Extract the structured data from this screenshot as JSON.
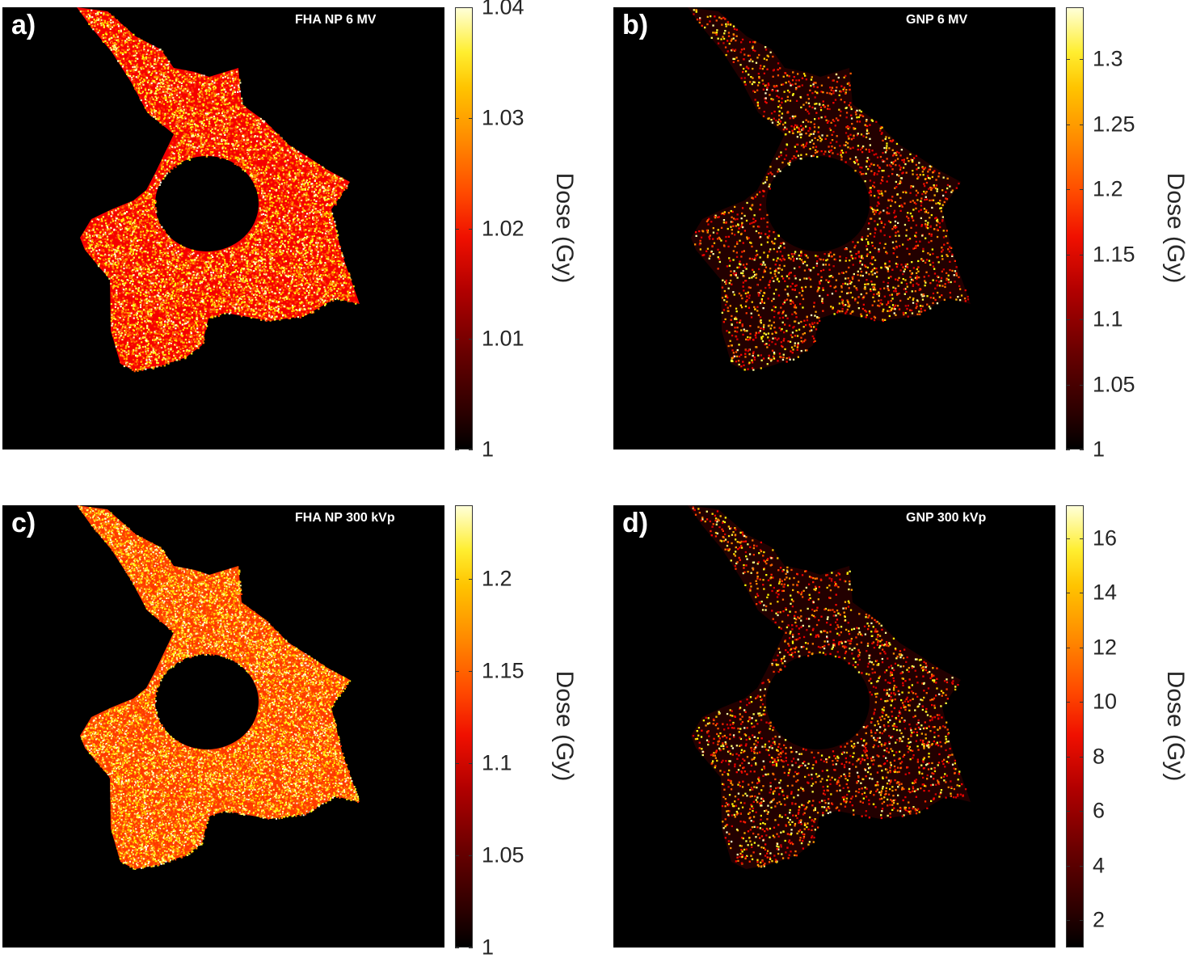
{
  "chart_data": [
    {
      "type": "heatmap",
      "panel": "a)",
      "title": "FHA NP 6 MV",
      "colorbar_label": "Dose (Gy)",
      "colormap": "hot",
      "clim": [
        1,
        1.04
      ],
      "colorbar_ticks": [
        "1",
        "1.01",
        "1.02",
        "1.03",
        "1.04"
      ],
      "tick_values": [
        1,
        1.01,
        1.02,
        1.03,
        1.04
      ],
      "dose_min": 1,
      "dose_max": 1.04,
      "typical_dose_in_cytoplasm": 1.018,
      "dose_in_nucleus": 1,
      "dose_outside_cell": 1,
      "texture": "dense"
    },
    {
      "type": "heatmap",
      "panel": "b)",
      "title": "GNP 6 MV",
      "colorbar_label": "Dose (Gy)",
      "colormap": "hot",
      "clim": [
        1,
        1.34
      ],
      "colorbar_ticks": [
        "1",
        "1.05",
        "1.1",
        "1.15",
        "1.2",
        "1.25",
        "1.3"
      ],
      "tick_values": [
        1,
        1.05,
        1.1,
        1.15,
        1.2,
        1.25,
        1.3
      ],
      "dose_min": 1,
      "dose_max": 1.34,
      "typical_dose_in_cytoplasm": 1.12,
      "dose_in_nucleus": 1,
      "dose_outside_cell": 1,
      "texture": "sparse"
    },
    {
      "type": "heatmap",
      "panel": "c)",
      "title": "FHA NP 300 kVp",
      "colorbar_label": "Dose (Gy)",
      "colormap": "hot",
      "clim": [
        1,
        1.24
      ],
      "colorbar_ticks": [
        "1",
        "1.05",
        "1.1",
        "1.15",
        "1.2"
      ],
      "tick_values": [
        1,
        1.05,
        1.1,
        1.15,
        1.2
      ],
      "dose_min": 1,
      "dose_max": 1.24,
      "typical_dose_in_cytoplasm": 1.11,
      "dose_in_nucleus": 1,
      "dose_outside_cell": 1,
      "texture": "very-dense"
    },
    {
      "type": "heatmap",
      "panel": "d)",
      "title": "GNP 300 kVp",
      "colorbar_label": "Dose (Gy)",
      "colormap": "hot",
      "clim": [
        1,
        17.2
      ],
      "colorbar_ticks": [
        "2",
        "4",
        "6",
        "8",
        "10",
        "12",
        "14",
        "16"
      ],
      "tick_values": [
        2,
        4,
        6,
        8,
        10,
        12,
        14,
        16
      ],
      "dose_min": 1,
      "dose_max": 17.2,
      "typical_dose_in_cytoplasm": 6,
      "dose_in_nucleus": 1,
      "dose_outside_cell": 1,
      "texture": "sparse"
    }
  ]
}
